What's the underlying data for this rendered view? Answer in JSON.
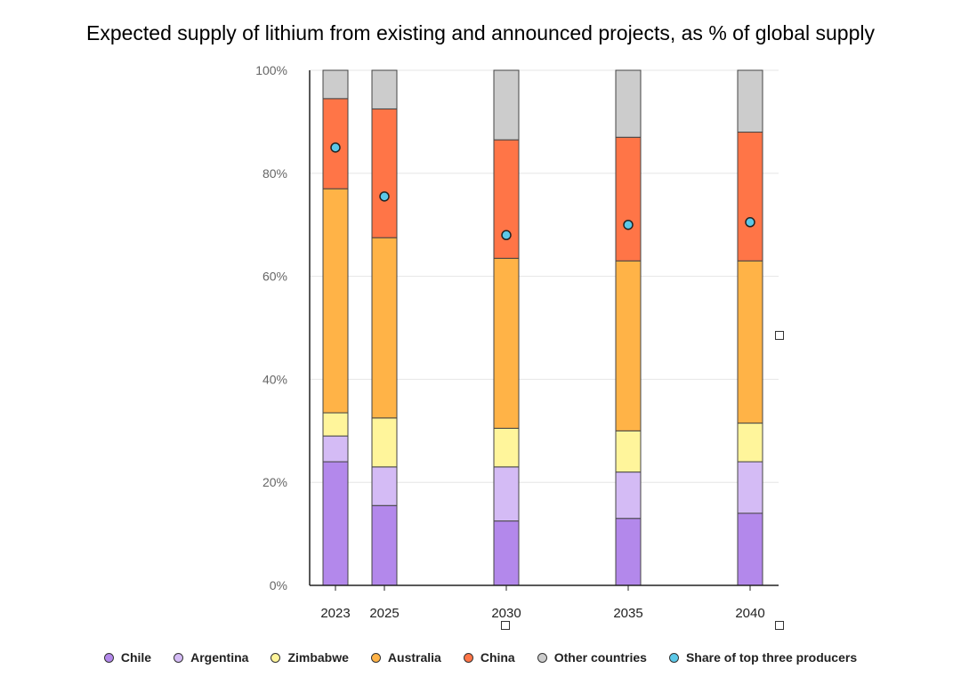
{
  "chart_data": {
    "type": "bar",
    "stacked": true,
    "title": "Expected supply of lithium from existing and announced projects, as % of global supply",
    "categories": [
      "2023",
      "2025",
      "2030",
      "2035",
      "2040"
    ],
    "ylim": [
      0,
      100
    ],
    "yticks": [
      "0%",
      "20%",
      "40%",
      "60%",
      "80%",
      "100%"
    ],
    "grid": true,
    "legend_position": "bottom",
    "series": [
      {
        "name": "Chile",
        "color": "#b388eb",
        "values": [
          24,
          15.5,
          12.5,
          13,
          14
        ]
      },
      {
        "name": "Argentina",
        "color": "#d4bbf5",
        "values": [
          5,
          7.5,
          10.5,
          9,
          10
        ]
      },
      {
        "name": "Zimbabwe",
        "color": "#fff59b",
        "values": [
          4.5,
          9.5,
          7.5,
          8,
          7.5
        ]
      },
      {
        "name": "Australia",
        "color": "#ffb347",
        "values": [
          43.5,
          35,
          33,
          33,
          31.5
        ]
      },
      {
        "name": "China",
        "color": "#ff7547",
        "values": [
          17.5,
          25,
          23,
          24,
          25
        ]
      },
      {
        "name": "Other countries",
        "color": "#cccccc",
        "values": [
          5.5,
          7.5,
          13.5,
          13,
          12
        ]
      }
    ],
    "overlay": {
      "name": "Share of top three producers",
      "color": "#5bc8e8",
      "values": [
        85,
        75.5,
        68,
        70,
        70.5
      ]
    }
  }
}
